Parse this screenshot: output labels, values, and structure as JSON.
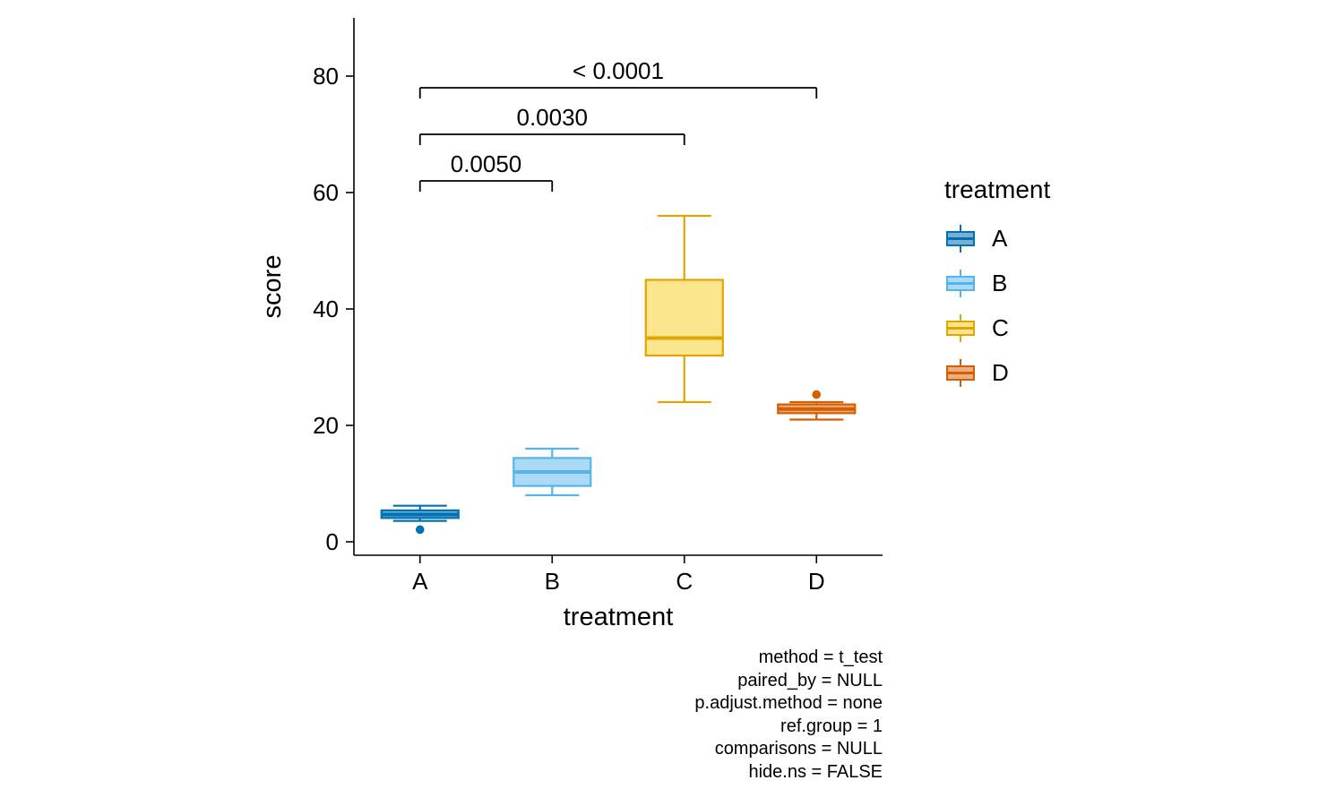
{
  "chart_data": {
    "type": "boxplot",
    "title": "",
    "xlabel": "treatment",
    "ylabel": "score",
    "yticks": [
      0,
      20,
      40,
      60,
      80
    ],
    "ylim": [
      0,
      88
    ],
    "categories": [
      "A",
      "B",
      "C",
      "D"
    ],
    "series": [
      {
        "name": "A",
        "color": "#0072B2",
        "fill": "#79AFD4",
        "whislo": 3.6,
        "q1": 4.1,
        "med": 4.7,
        "q3": 5.4,
        "whishi": 6.2,
        "outliers": [
          2.1
        ]
      },
      {
        "name": "B",
        "color": "#56B4E9",
        "fill": "#ABDAF4",
        "whislo": 8,
        "q1": 9.6,
        "med": 12,
        "q3": 14.4,
        "whishi": 16,
        "outliers": []
      },
      {
        "name": "C",
        "color": "#E0A500",
        "fill": "#FBE68E",
        "whislo": 24,
        "q1": 32,
        "med": 35,
        "q3": 45,
        "whishi": 56,
        "outliers": []
      },
      {
        "name": "D",
        "color": "#D55E00",
        "fill": "#EAAE80",
        "whislo": 21,
        "q1": 22.1,
        "med": 22.8,
        "q3": 23.6,
        "whishi": 24,
        "outliers": [
          25.3
        ]
      }
    ],
    "comparisons": [
      {
        "groups": [
          "A",
          "B"
        ],
        "label": "0.0050",
        "y": 62
      },
      {
        "groups": [
          "A",
          "C"
        ],
        "label": "0.0030",
        "y": 70
      },
      {
        "groups": [
          "A",
          "D"
        ],
        "label": "< 0.0001",
        "y": 78
      }
    ],
    "legend": {
      "title": "treatment",
      "entries": [
        {
          "label": "A",
          "color": "#0072B2",
          "fill": "#79AFD4"
        },
        {
          "label": "B",
          "color": "#56B4E9",
          "fill": "#ABDAF4"
        },
        {
          "label": "C",
          "color": "#E0A500",
          "fill": "#FBE68E"
        },
        {
          "label": "D",
          "color": "#D55E00",
          "fill": "#EAAE80"
        }
      ]
    },
    "caption_lines": [
      "method = t_test",
      "paired_by = NULL",
      "p.adjust.method = none",
      "ref.group = 1",
      "comparisons = NULL",
      "hide.ns = FALSE"
    ]
  }
}
